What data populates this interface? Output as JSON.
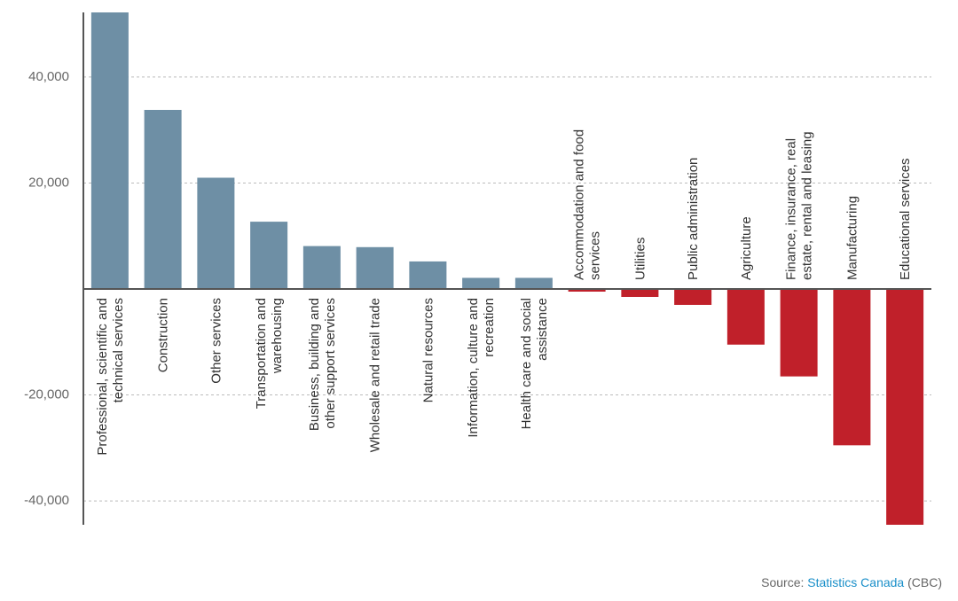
{
  "chart_data": {
    "type": "bar",
    "categories": [
      "Professional, scientific and\ntechnical services",
      "Construction",
      "Other services",
      "Transportation and\nwarehousing",
      "Business, building and\nother support services",
      "Wholesale and retail trade",
      "Natural resources",
      "Information, culture and\nrecreation",
      "Health care and social\nassistance",
      "Accommodation and food\nservices",
      "Utilities",
      "Public administration",
      "Agriculture",
      "Finance, insurance, real\nestate, rental and leasing",
      "Manufacturing",
      "Educational services"
    ],
    "values": [
      52200,
      33800,
      21000,
      12700,
      8100,
      7900,
      5200,
      2100,
      2100,
      -500,
      -1500,
      -3000,
      -10500,
      -16500,
      -29500,
      -44500
    ],
    "positive_color": "#6e8fa5",
    "negative_color": "#c0202a",
    "ylim": [
      -44500,
      52200
    ],
    "yticks": [
      {
        "value": -40000,
        "label": "-40,000"
      },
      {
        "value": -20000,
        "label": "-20,000"
      },
      0,
      {
        "value": 20000,
        "label": "20,000"
      },
      {
        "value": 40000,
        "label": "40,000"
      }
    ],
    "grid": true,
    "source": {
      "label": "Source:",
      "link": "Statistics Canada",
      "suffix": "(CBC)"
    }
  }
}
